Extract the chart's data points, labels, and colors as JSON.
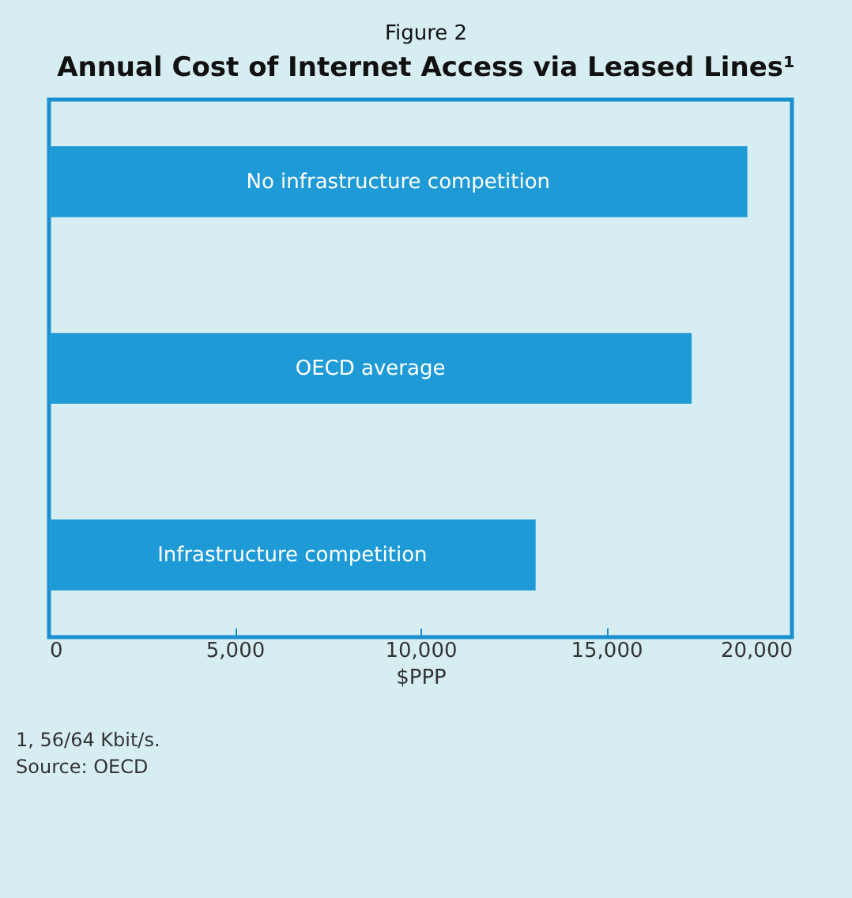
{
  "chart_data": {
    "type": "bar",
    "orientation": "horizontal",
    "subtitle": "Figure 2",
    "title": "Annual Cost of Internet Access via Leased Lines¹",
    "categories": [
      "No infrastructure competition",
      "OECD average",
      "Infrastructure competition"
    ],
    "values": [
      18800,
      17300,
      13100
    ],
    "color": "#1e9ad6",
    "xlim": [
      0,
      20000
    ],
    "xticks": [
      {
        "value": 0,
        "label": "0"
      },
      {
        "value": 5000,
        "label": "5,000"
      },
      {
        "value": 10000,
        "label": "10,000"
      },
      {
        "value": 15000,
        "label": "15,000"
      },
      {
        "value": 20000,
        "label": "20,000"
      }
    ],
    "xlabel": "$PPP",
    "tick_labels": "x",
    "grid": false,
    "annotations": [
      "1, 56/64 Kbit/s.",
      "Source: OECD"
    ]
  }
}
